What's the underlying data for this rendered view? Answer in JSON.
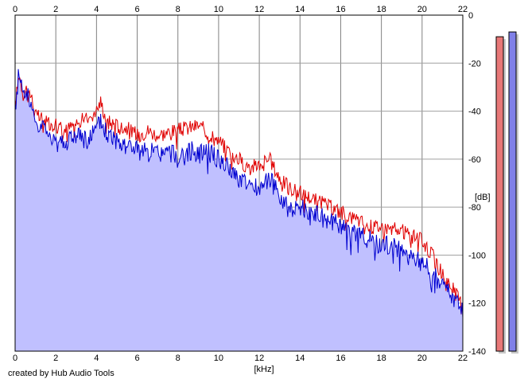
{
  "footer": "created by Hub Audio Tools",
  "chart_data": {
    "type": "area",
    "xlabel": "[kHz]",
    "ylabel": "[dB]",
    "xlim": [
      0,
      22
    ],
    "ylim": [
      -140,
      0
    ],
    "x_ticks": [
      "0",
      "2",
      "4",
      "6",
      "8",
      "10",
      "12",
      "14",
      "16",
      "18",
      "20",
      "22"
    ],
    "y_ticks": [
      "0",
      "-20",
      "-40",
      "-60",
      "-80",
      "-100",
      "-120",
      "-140"
    ],
    "grid": true,
    "background": "#ffffff",
    "fill_color": "#c0c0ff",
    "series": [
      {
        "color": "#e00000",
        "x": [
          0,
          0.2,
          0.4,
          0.6,
          0.8,
          1,
          1.5,
          2,
          2.5,
          3,
          3.5,
          4,
          4.2,
          4.5,
          5,
          5.5,
          6,
          6.5,
          7,
          7.5,
          8,
          8.5,
          9,
          9.5,
          10,
          10.5,
          11,
          11.5,
          12,
          12.5,
          13,
          13.5,
          14,
          14.5,
          15,
          15.5,
          16,
          16.5,
          17,
          17.5,
          18,
          18.5,
          19,
          19.5,
          20,
          20.5,
          21,
          21.5,
          22
        ],
        "values": [
          -38,
          -24,
          -33,
          -30,
          -34,
          -42,
          -44,
          -46,
          -48,
          -45,
          -43,
          -40,
          -36,
          -44,
          -46,
          -47,
          -50,
          -48,
          -50,
          -49,
          -48,
          -47,
          -46,
          -49,
          -52,
          -57,
          -60,
          -64,
          -62,
          -60,
          -68,
          -72,
          -74,
          -76,
          -78,
          -80,
          -82,
          -84,
          -86,
          -88,
          -88,
          -89,
          -90,
          -92,
          -94,
          -100,
          -108,
          -114,
          -121
        ]
      },
      {
        "color": "#0000d0",
        "x": [
          0,
          0.2,
          0.4,
          0.6,
          0.8,
          1,
          1.5,
          2,
          2.5,
          3,
          3.5,
          4,
          4.2,
          4.5,
          5,
          5.5,
          6,
          6.5,
          7,
          7.5,
          8,
          8.5,
          9,
          9.5,
          10,
          10.5,
          11,
          11.5,
          12,
          12.5,
          13,
          13.5,
          14,
          14.5,
          15,
          15.5,
          16,
          16.5,
          17,
          17.5,
          18,
          18.5,
          19,
          19.5,
          20,
          20.5,
          21,
          21.5,
          22
        ],
        "values": [
          -40,
          -22,
          -34,
          -32,
          -36,
          -45,
          -48,
          -52,
          -53,
          -50,
          -52,
          -48,
          -44,
          -50,
          -52,
          -54,
          -56,
          -57,
          -58,
          -58,
          -58,
          -57,
          -56,
          -57,
          -60,
          -64,
          -68,
          -72,
          -70,
          -68,
          -76,
          -80,
          -80,
          -82,
          -84,
          -86,
          -88,
          -90,
          -92,
          -94,
          -96,
          -96,
          -98,
          -101,
          -103,
          -108,
          -113,
          -117,
          -123
        ]
      }
    ],
    "level_meters": [
      {
        "color": "#e87878",
        "level_db": -9
      },
      {
        "color": "#8080e8",
        "level_db": -7
      }
    ]
  }
}
